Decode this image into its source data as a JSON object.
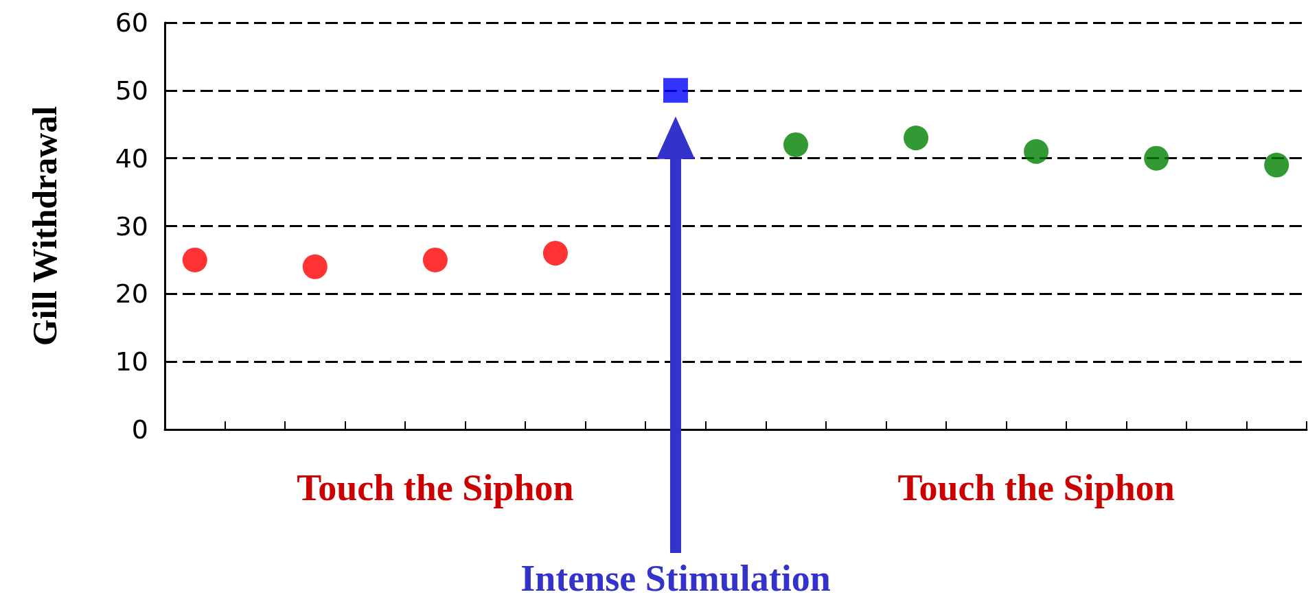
{
  "chart_data": {
    "type": "scatter",
    "ylabel": "Gill Withdrawal",
    "categories": [
      null,
      null,
      null,
      null,
      null,
      null,
      null,
      null,
      null,
      null,
      null,
      null,
      null,
      null,
      null,
      null,
      null,
      null,
      null
    ],
    "series": [
      {
        "color": "#ff0000",
        "marker": "circle",
        "values": [
          25,
          null,
          24,
          null,
          25,
          null,
          26,
          null,
          null,
          null,
          null,
          null,
          null,
          null,
          null,
          null,
          null,
          null,
          null
        ]
      },
      {
        "color": "#0000ff",
        "marker": "square",
        "values": [
          null,
          null,
          null,
          null,
          null,
          null,
          null,
          null,
          50,
          null,
          null,
          null,
          null,
          null,
          null,
          null,
          null,
          null,
          null
        ]
      },
      {
        "color": "#008000",
        "marker": "circle",
        "values": [
          null,
          null,
          null,
          null,
          null,
          null,
          null,
          null,
          null,
          null,
          42,
          null,
          43,
          null,
          41,
          null,
          40,
          null,
          39
        ]
      }
    ],
    "ylim": [
      0,
      60
    ],
    "yticks": [
      0,
      10,
      20,
      30,
      40,
      50,
      60
    ],
    "grid": "y",
    "tick_labels": "y",
    "annotations": [
      "Touch the Siphon",
      "Touch the Siphon",
      "Intense Stimulation"
    ]
  }
}
